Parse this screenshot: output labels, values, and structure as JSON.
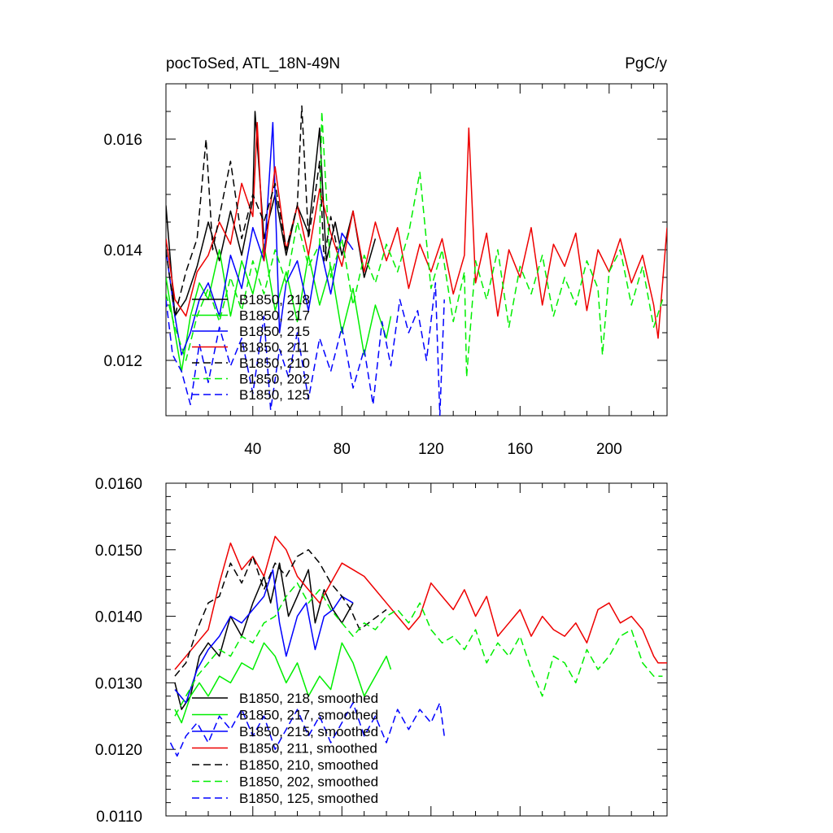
{
  "colors": {
    "black": "#000000",
    "green": "#00ee00",
    "blue": "#0000ff",
    "red": "#ee0000"
  },
  "chart_data": [
    {
      "type": "line",
      "title_left": "pocToSed, ATL_18N-49N",
      "title_right": "PgC/y",
      "xlim": [
        1,
        226
      ],
      "ylim": [
        0.011,
        0.017
      ],
      "xticks": [
        40,
        80,
        120,
        160,
        200
      ],
      "xtick_labels": [
        "40",
        "80",
        "120",
        "160",
        "200"
      ],
      "yticks": [
        0.012,
        0.014,
        0.016
      ],
      "ytick_labels": [
        "0.012",
        "0.014",
        "0.016"
      ],
      "legend": [
        "B1850, 218",
        "B1850, 217",
        "B1850, 215",
        "B1850, 211",
        "B1850, 210",
        "B1850, 202",
        "B1850, 125"
      ],
      "series": [
        {
          "name": "B1850, 218",
          "color": "black",
          "dash": false,
          "x": [
            1,
            5,
            10,
            15,
            20,
            25,
            30,
            35,
            40,
            41,
            45,
            50,
            55,
            60,
            65,
            70,
            73,
            77,
            80,
            85,
            90,
            95
          ],
          "values": [
            0.0148,
            0.0128,
            0.0131,
            0.0137,
            0.0145,
            0.0138,
            0.0147,
            0.0139,
            0.0149,
            0.0165,
            0.0142,
            0.015,
            0.0139,
            0.0148,
            0.0143,
            0.0162,
            0.0138,
            0.0145,
            0.0139,
            0.0147,
            0.0135,
            0.0142
          ]
        },
        {
          "name": "B1850, 217",
          "color": "green",
          "dash": false,
          "x": [
            1,
            5,
            8,
            12,
            16,
            20,
            25,
            30,
            35,
            40,
            45,
            50,
            55,
            60,
            65,
            70,
            75,
            80,
            85,
            90,
            95,
            100,
            102
          ],
          "values": [
            0.0135,
            0.0125,
            0.0118,
            0.0128,
            0.0134,
            0.0131,
            0.014,
            0.0128,
            0.0138,
            0.0132,
            0.0141,
            0.0129,
            0.0136,
            0.0127,
            0.0139,
            0.013,
            0.0137,
            0.0125,
            0.0133,
            0.0121,
            0.013,
            0.0124,
            0.0128
          ]
        },
        {
          "name": "B1850, 215",
          "color": "blue",
          "dash": false,
          "x": [
            1,
            5,
            8,
            12,
            16,
            20,
            25,
            30,
            35,
            40,
            45,
            49,
            52,
            55,
            60,
            65,
            70,
            75,
            80,
            85
          ],
          "values": [
            0.014,
            0.0128,
            0.0121,
            0.0125,
            0.0131,
            0.0134,
            0.0128,
            0.0139,
            0.0133,
            0.0144,
            0.0138,
            0.0163,
            0.0125,
            0.0134,
            0.0138,
            0.0129,
            0.0141,
            0.0132,
            0.0143,
            0.014
          ]
        },
        {
          "name": "B1850, 211",
          "color": "red",
          "dash": false,
          "x": [
            1,
            5,
            10,
            15,
            20,
            25,
            30,
            35,
            40,
            42,
            45,
            50,
            55,
            60,
            65,
            70,
            75,
            80,
            85,
            90,
            95,
            100,
            105,
            110,
            115,
            120,
            125,
            130,
            135,
            137,
            140,
            145,
            150,
            155,
            160,
            165,
            170,
            175,
            180,
            185,
            190,
            195,
            200,
            205,
            210,
            215,
            220,
            222,
            226
          ],
          "values": [
            0.0142,
            0.0131,
            0.0128,
            0.0136,
            0.0139,
            0.0145,
            0.0141,
            0.0152,
            0.0146,
            0.0163,
            0.0138,
            0.0155,
            0.014,
            0.0148,
            0.0139,
            0.0151,
            0.0143,
            0.0137,
            0.0147,
            0.0136,
            0.0145,
            0.0138,
            0.0144,
            0.0133,
            0.0141,
            0.0136,
            0.0142,
            0.0132,
            0.0139,
            0.0162,
            0.0134,
            0.0143,
            0.0128,
            0.014,
            0.0135,
            0.0144,
            0.013,
            0.0141,
            0.0137,
            0.0143,
            0.0129,
            0.014,
            0.0136,
            0.0142,
            0.0134,
            0.0139,
            0.013,
            0.0124,
            0.0144
          ]
        },
        {
          "name": "B1850, 210",
          "color": "black",
          "dash": true,
          "x": [
            1,
            5,
            10,
            15,
            19,
            22,
            26,
            30,
            35,
            40,
            45,
            50,
            55,
            60,
            62,
            65,
            68,
            70,
            72,
            75,
            78
          ],
          "values": [
            0.014,
            0.0128,
            0.0136,
            0.0142,
            0.016,
            0.014,
            0.0148,
            0.0156,
            0.0142,
            0.015,
            0.0145,
            0.0152,
            0.014,
            0.0148,
            0.0166,
            0.0142,
            0.015,
            0.0156,
            0.0138,
            0.0146,
            0.014
          ]
        },
        {
          "name": "B1850, 202",
          "color": "green",
          "dash": true,
          "x": [
            1,
            5,
            10,
            15,
            20,
            25,
            30,
            35,
            40,
            45,
            50,
            55,
            60,
            65,
            70,
            71,
            75,
            80,
            85,
            90,
            95,
            100,
            105,
            110,
            115,
            120,
            125,
            130,
            135,
            136,
            140,
            145,
            150,
            155,
            160,
            165,
            170,
            175,
            180,
            185,
            190,
            195,
            197,
            200,
            205,
            210,
            215,
            220,
            224
          ],
          "values": [
            0.0132,
            0.0126,
            0.012,
            0.0128,
            0.0133,
            0.0127,
            0.0135,
            0.0129,
            0.0138,
            0.0132,
            0.014,
            0.0134,
            0.0145,
            0.0137,
            0.0141,
            0.0165,
            0.0135,
            0.0142,
            0.013,
            0.0139,
            0.0134,
            0.0141,
            0.0136,
            0.0143,
            0.0154,
            0.0133,
            0.014,
            0.0127,
            0.0136,
            0.0117,
            0.0138,
            0.0131,
            0.014,
            0.0126,
            0.0137,
            0.0132,
            0.0139,
            0.0128,
            0.0135,
            0.013,
            0.0138,
            0.0133,
            0.0121,
            0.0136,
            0.014,
            0.013,
            0.0137,
            0.0126,
            0.0131
          ]
        },
        {
          "name": "B1850, 125",
          "color": "blue",
          "dash": true,
          "x": [
            1,
            4,
            8,
            12,
            16,
            20,
            25,
            30,
            35,
            40,
            45,
            48,
            52,
            56,
            60,
            65,
            70,
            75,
            80,
            85,
            90,
            94,
            98,
            102,
            106,
            110,
            114,
            118,
            122,
            124,
            126
          ],
          "values": [
            0.0131,
            0.0121,
            0.0118,
            0.0112,
            0.0123,
            0.0116,
            0.0126,
            0.0119,
            0.0124,
            0.0114,
            0.0128,
            0.0111,
            0.0122,
            0.0117,
            0.0125,
            0.0113,
            0.0124,
            0.0118,
            0.0126,
            0.0115,
            0.0122,
            0.0112,
            0.0127,
            0.0119,
            0.0131,
            0.0125,
            0.0129,
            0.012,
            0.0134,
            0.011,
            0.0131
          ]
        }
      ]
    },
    {
      "type": "line",
      "xlim": [
        1,
        226
      ],
      "ylim": [
        0.011,
        0.016
      ],
      "xticks": [
        40,
        80,
        120,
        160,
        200
      ],
      "yticks": [
        0.011,
        0.012,
        0.013,
        0.014,
        0.015,
        0.016
      ],
      "ytick_labels": [
        "0.0110",
        "0.0120",
        "0.0130",
        "0.0140",
        "0.0150",
        "0.0160"
      ],
      "legend": [
        "B1850, 218, smoothed",
        "B1850, 217, smoothed",
        "B1850, 215, smoothed",
        "B1850, 211, smoothed",
        "B1850, 210, smoothed",
        "B1850, 202, smoothed",
        "B1850, 125, smoothed"
      ],
      "series": [
        {
          "name": "B1850, 218, smoothed",
          "color": "black",
          "dash": false,
          "x": [
            5,
            8,
            12,
            16,
            20,
            25,
            30,
            35,
            40,
            45,
            48,
            52,
            56,
            60,
            65,
            68,
            72,
            76,
            80,
            85
          ],
          "values": [
            0.013,
            0.0126,
            0.0128,
            0.0134,
            0.0136,
            0.0134,
            0.014,
            0.0137,
            0.0142,
            0.0146,
            0.0142,
            0.0148,
            0.014,
            0.0143,
            0.0147,
            0.0139,
            0.0144,
            0.0141,
            0.0139,
            0.0142
          ]
        },
        {
          "name": "B1850, 217, smoothed",
          "color": "green",
          "dash": false,
          "x": [
            5,
            8,
            12,
            16,
            20,
            25,
            30,
            35,
            40,
            45,
            50,
            55,
            60,
            65,
            70,
            75,
            80,
            85,
            90,
            95,
            100,
            102
          ],
          "values": [
            0.0126,
            0.0124,
            0.0128,
            0.013,
            0.0128,
            0.0131,
            0.013,
            0.0133,
            0.0132,
            0.0136,
            0.0134,
            0.013,
            0.0133,
            0.0128,
            0.0131,
            0.0129,
            0.0136,
            0.0133,
            0.0128,
            0.0131,
            0.0134,
            0.0132
          ]
        },
        {
          "name": "B1850, 215, smoothed",
          "color": "blue",
          "dash": false,
          "x": [
            5,
            10,
            15,
            20,
            25,
            30,
            35,
            40,
            45,
            49,
            52,
            55,
            60,
            64,
            68,
            72,
            76,
            80,
            85
          ],
          "values": [
            0.0129,
            0.0127,
            0.0132,
            0.0135,
            0.0137,
            0.014,
            0.0139,
            0.0141,
            0.0143,
            0.0147,
            0.0139,
            0.0134,
            0.014,
            0.0142,
            0.0135,
            0.014,
            0.0141,
            0.0143,
            0.0142
          ]
        },
        {
          "name": "B1850, 211, smoothed",
          "color": "red",
          "dash": false,
          "x": [
            5,
            10,
            15,
            20,
            25,
            30,
            35,
            40,
            45,
            50,
            55,
            60,
            65,
            70,
            75,
            80,
            85,
            90,
            95,
            100,
            105,
            110,
            115,
            120,
            125,
            130,
            135,
            140,
            145,
            150,
            155,
            160,
            165,
            170,
            175,
            180,
            185,
            190,
            195,
            200,
            205,
            210,
            215,
            220,
            222,
            226
          ],
          "values": [
            0.0132,
            0.0134,
            0.0136,
            0.0138,
            0.0145,
            0.0151,
            0.0147,
            0.0149,
            0.0146,
            0.0152,
            0.015,
            0.0146,
            0.0144,
            0.0142,
            0.0145,
            0.0148,
            0.0147,
            0.0146,
            0.0144,
            0.0142,
            0.014,
            0.0138,
            0.014,
            0.0145,
            0.0143,
            0.0141,
            0.0144,
            0.014,
            0.0143,
            0.0137,
            0.0139,
            0.0141,
            0.0137,
            0.014,
            0.0138,
            0.0137,
            0.0139,
            0.0136,
            0.0141,
            0.0142,
            0.0139,
            0.014,
            0.0138,
            0.0134,
            0.0133,
            0.0133
          ]
        },
        {
          "name": "B1850, 210, smoothed",
          "color": "black",
          "dash": true,
          "x": [
            5,
            10,
            15,
            20,
            25,
            30,
            35,
            40,
            45,
            50,
            55,
            60,
            65,
            70,
            75,
            80,
            84,
            88,
            92,
            96,
            100
          ],
          "values": [
            0.0131,
            0.0133,
            0.0138,
            0.0142,
            0.0143,
            0.0148,
            0.0145,
            0.0149,
            0.0144,
            0.0148,
            0.0146,
            0.0149,
            0.015,
            0.0148,
            0.0145,
            0.0143,
            0.0141,
            0.0138,
            0.0139,
            0.014,
            0.0141
          ]
        },
        {
          "name": "B1850, 202, smoothed",
          "color": "green",
          "dash": true,
          "x": [
            5,
            10,
            15,
            20,
            25,
            30,
            35,
            40,
            45,
            50,
            55,
            60,
            65,
            70,
            75,
            80,
            85,
            90,
            95,
            100,
            105,
            110,
            115,
            120,
            125,
            130,
            135,
            140,
            145,
            150,
            155,
            160,
            165,
            170,
            175,
            180,
            185,
            190,
            195,
            200,
            205,
            210,
            215,
            220,
            224
          ],
          "values": [
            0.0125,
            0.0128,
            0.0131,
            0.0133,
            0.0135,
            0.0134,
            0.0137,
            0.0136,
            0.0139,
            0.014,
            0.0143,
            0.0145,
            0.0142,
            0.0144,
            0.0141,
            0.0139,
            0.0137,
            0.0139,
            0.0138,
            0.014,
            0.0141,
            0.0139,
            0.0142,
            0.0138,
            0.0136,
            0.0137,
            0.0135,
            0.0138,
            0.0133,
            0.0136,
            0.0134,
            0.0137,
            0.0132,
            0.0128,
            0.0134,
            0.0133,
            0.013,
            0.0135,
            0.0132,
            0.0134,
            0.0137,
            0.0138,
            0.0133,
            0.0131,
            0.0131
          ]
        },
        {
          "name": "B1850, 125, smoothed",
          "color": "blue",
          "dash": true,
          "x": [
            3,
            6,
            10,
            15,
            20,
            25,
            30,
            35,
            40,
            45,
            50,
            55,
            60,
            65,
            70,
            75,
            80,
            85,
            90,
            95,
            100,
            105,
            110,
            115,
            120,
            124,
            126
          ],
          "values": [
            0.0121,
            0.0119,
            0.0122,
            0.0124,
            0.0121,
            0.0125,
            0.0123,
            0.0126,
            0.0122,
            0.0125,
            0.012,
            0.0123,
            0.0126,
            0.0122,
            0.0125,
            0.0121,
            0.0124,
            0.0127,
            0.0122,
            0.0125,
            0.0121,
            0.0126,
            0.0123,
            0.0126,
            0.0124,
            0.0127,
            0.0122
          ]
        }
      ]
    }
  ]
}
